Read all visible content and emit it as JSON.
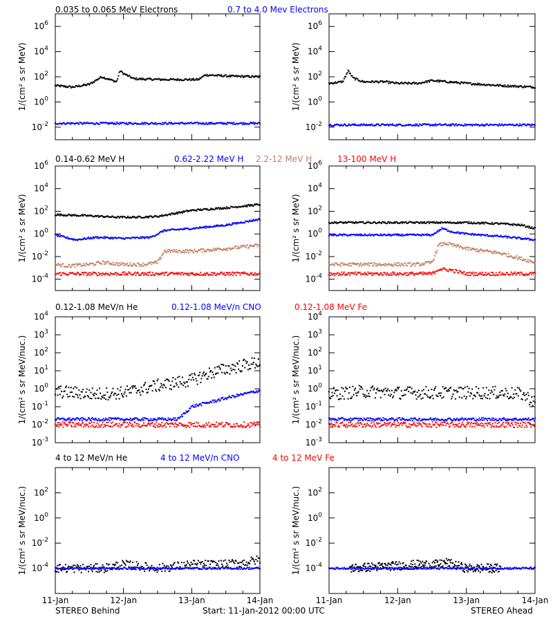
{
  "colors": {
    "black": "#000000",
    "blue": "#0000ff",
    "tan": "#c08060",
    "red": "#ff0000",
    "grey": "#808080"
  },
  "footer": {
    "left": "STEREO Behind",
    "center": "Start: 11-Jan-2012 00:00 UTC",
    "right": "STEREO Ahead"
  },
  "chart_data": [
    {
      "type": "scatter",
      "panel": "electrons",
      "legend": [
        {
          "text": "0.035 to 0.065 MeV Electrons",
          "color": "#000000"
        },
        {
          "text": "0.7 to 4.0 Mev Electrons",
          "color": "#0000ff"
        }
      ],
      "ylabel": "1/(cm² s sr MeV)",
      "yscale": "log",
      "ylim": [
        0.001,
        10000000
      ],
      "yticks": [
        {
          "value": 0.01,
          "base": "10",
          "exp": "-2"
        },
        {
          "value": 1,
          "base": "10",
          "exp": "0"
        },
        {
          "value": 100,
          "base": "10",
          "exp": "2"
        },
        {
          "value": 10000,
          "base": "10",
          "exp": "4"
        },
        {
          "value": 1000000,
          "base": "10",
          "exp": "6"
        }
      ],
      "xlim": [
        0,
        3
      ],
      "xticks": [
        "11-Jan",
        "12-Jan",
        "13-Jan",
        "14-Jan"
      ],
      "behind": [
        {
          "name": "0.035 to 0.065 MeV Electrons",
          "color": "#000000",
          "x": [
            0,
            0.25,
            0.5,
            0.68,
            0.8,
            0.9,
            0.95,
            1.0,
            1.15,
            1.3,
            1.6,
            1.9,
            2.1,
            2.2,
            2.6,
            3.0
          ],
          "y": [
            20,
            15,
            25,
            100,
            60,
            40,
            300,
            180,
            70,
            65,
            60,
            60,
            60,
            140,
            110,
            100
          ]
        },
        {
          "name": "0.7 to 4.0 Mev Electrons",
          "color": "#0000ff",
          "x": [
            0,
            0.5,
            1.0,
            1.5,
            2.0,
            2.5,
            3.0
          ],
          "y": [
            0.02,
            0.02,
            0.02,
            0.02,
            0.02,
            0.02,
            0.02
          ]
        }
      ],
      "ahead": [
        {
          "name": "0.035 to 0.065 MeV Electrons",
          "color": "#000000",
          "x": [
            0,
            0.2,
            0.28,
            0.35,
            0.5,
            0.8,
            1.0,
            1.3,
            1.5,
            2.0,
            2.5,
            3.0
          ],
          "y": [
            30,
            40,
            300,
            80,
            40,
            40,
            30,
            30,
            50,
            30,
            20,
            15
          ]
        },
        {
          "name": "0.7 to 4.0 Mev Electrons",
          "color": "#0000ff",
          "x": [
            0,
            0.5,
            1.0,
            1.5,
            2.0,
            2.5,
            3.0
          ],
          "y": [
            0.015,
            0.015,
            0.015,
            0.015,
            0.015,
            0.015,
            0.015
          ]
        }
      ]
    },
    {
      "type": "scatter",
      "panel": "protons",
      "legend": [
        {
          "text": "0.14-0.62 MeV H",
          "color": "#000000"
        },
        {
          "text": "0.62-2.22 MeV H",
          "color": "#0000ff"
        },
        {
          "text": "2.2-12 MeV H",
          "color": "#c08060"
        },
        {
          "text": "13-100 MeV H",
          "color": "#ff0000"
        }
      ],
      "ylabel": "1/(cm² s sr MeV)",
      "yscale": "log",
      "ylim": [
        1e-05,
        1000000
      ],
      "yticks": [
        {
          "value": 0.0001,
          "base": "10",
          "exp": "-4"
        },
        {
          "value": 0.01,
          "base": "10",
          "exp": "-2"
        },
        {
          "value": 1,
          "base": "10",
          "exp": "0"
        },
        {
          "value": 100,
          "base": "10",
          "exp": "2"
        },
        {
          "value": 10000,
          "base": "10",
          "exp": "4"
        },
        {
          "value": 1000000,
          "base": "10",
          "exp": "6"
        }
      ],
      "xlim": [
        0,
        3
      ],
      "xticks": [
        "11-Jan",
        "12-Jan",
        "13-Jan",
        "14-Jan"
      ],
      "behind": [
        {
          "name": "0.14-0.62 MeV H",
          "color": "#000000",
          "x": [
            0,
            0.5,
            0.9,
            1.2,
            1.5,
            2.0,
            2.5,
            3.0
          ],
          "y": [
            50,
            40,
            30,
            30,
            35,
            120,
            200,
            400
          ]
        },
        {
          "name": "0.62-2.22 MeV H",
          "color": "#0000ff",
          "x": [
            0,
            0.3,
            0.6,
            1.0,
            1.4,
            1.6,
            2.0,
            2.5,
            3.0
          ],
          "y": [
            0.8,
            0.3,
            0.5,
            0.4,
            0.5,
            2,
            3,
            6,
            20
          ]
        },
        {
          "name": "2.2-12 MeV H",
          "color": "#c08060",
          "x": [
            0,
            0.2,
            0.5,
            0.7,
            1.0,
            1.3,
            1.5,
            1.6,
            2.0,
            2.5,
            3.0
          ],
          "y": [
            0.002,
            0.0015,
            0.002,
            0.003,
            0.002,
            0.002,
            0.003,
            0.03,
            0.03,
            0.05,
            0.1
          ]
        },
        {
          "name": "13-100 MeV H",
          "color": "#ff0000",
          "x": [
            0,
            0.5,
            1.0,
            1.5,
            2.0,
            2.5,
            3.0
          ],
          "y": [
            0.0003,
            0.0003,
            0.0003,
            0.0003,
            0.0003,
            0.0003,
            0.0003
          ]
        }
      ],
      "ahead": [
        {
          "name": "0.14-0.62 MeV H",
          "color": "#000000",
          "x": [
            0,
            0.5,
            1.0,
            1.5,
            2.0,
            2.5,
            2.8,
            3.0
          ],
          "y": [
            10,
            10,
            10,
            10,
            10,
            8,
            6,
            3
          ]
        },
        {
          "name": "0.62-2.22 MeV H",
          "color": "#0000ff",
          "x": [
            0,
            0.5,
            1.0,
            1.5,
            1.65,
            1.8,
            2.0,
            2.5,
            3.0
          ],
          "y": [
            0.8,
            0.8,
            0.8,
            0.8,
            3,
            1.5,
            1,
            0.6,
            0.3
          ]
        },
        {
          "name": "2.2-12 MeV H",
          "color": "#c08060",
          "x": [
            0,
            0.5,
            1.0,
            1.3,
            1.5,
            1.6,
            1.7,
            2.0,
            2.5,
            3.0
          ],
          "y": [
            0.002,
            0.002,
            0.002,
            0.002,
            0.003,
            0.1,
            0.15,
            0.05,
            0.02,
            0.003
          ]
        },
        {
          "name": "13-100 MeV H",
          "color": "#ff0000",
          "x": [
            0,
            0.5,
            1.0,
            1.5,
            1.6,
            1.8,
            2.0,
            2.5,
            3.0
          ],
          "y": [
            0.0003,
            0.0003,
            0.0003,
            0.0003,
            0.0008,
            0.0006,
            0.0003,
            0.0003,
            0.0003
          ]
        }
      ]
    },
    {
      "type": "scatter",
      "panel": "heavy-ions-low",
      "legend": [
        {
          "text": "0.12-1.08 MeV/n He",
          "color": "#000000"
        },
        {
          "text": "0.12-1.08 MeV/n CNO",
          "color": "#0000ff"
        },
        {
          "text": "0.12-1.08 MeV Fe",
          "color": "#ff0000"
        }
      ],
      "ylabel": "1/(cm² s sr MeV/nuc.)",
      "yscale": "log",
      "ylim": [
        0.001,
        10000
      ],
      "yticks": [
        {
          "value": 0.001,
          "base": "10",
          "exp": "-3"
        },
        {
          "value": 0.01,
          "base": "10",
          "exp": "-2"
        },
        {
          "value": 0.1,
          "base": "10",
          "exp": "-1"
        },
        {
          "value": 1,
          "base": "10",
          "exp": "0"
        },
        {
          "value": 10,
          "base": "10",
          "exp": "1"
        },
        {
          "value": 100,
          "base": "10",
          "exp": "2"
        },
        {
          "value": 1000,
          "base": "10",
          "exp": "3"
        },
        {
          "value": 10000,
          "base": "10",
          "exp": "4"
        }
      ],
      "xlim": [
        0,
        3
      ],
      "xticks": [
        "11-Jan",
        "12-Jan",
        "13-Jan",
        "14-Jan"
      ],
      "behind": [
        {
          "name": "0.12-1.08 MeV/n He",
          "color": "#000000",
          "x": [
            0,
            0.3,
            0.6,
            1.0,
            1.5,
            2.0,
            2.3,
            2.6,
            3.0
          ],
          "y": [
            0.7,
            0.6,
            0.5,
            0.6,
            1.5,
            3,
            8,
            15,
            30
          ]
        },
        {
          "name": "0.12-1.08 MeV/n CNO",
          "color": "#0000ff",
          "x": [
            0,
            0.5,
            1.0,
            1.5,
            1.8,
            2.0,
            2.5,
            3.0
          ],
          "y": [
            0.02,
            0.02,
            0.02,
            0.02,
            0.02,
            0.1,
            0.3,
            0.8
          ]
        },
        {
          "name": "0.12-1.08 MeV Fe",
          "color": "#ff0000",
          "x": [
            0,
            0.5,
            1.0,
            1.5,
            2.0,
            2.5,
            3.0
          ],
          "y": [
            0.01,
            0.01,
            0.01,
            0.01,
            0.01,
            0.01,
            0.01
          ]
        }
      ],
      "ahead": [
        {
          "name": "0.12-1.08 MeV/n He",
          "color": "#000000",
          "x": [
            0,
            0.5,
            1.0,
            1.5,
            2.0,
            2.5,
            2.8,
            3.0
          ],
          "y": [
            0.5,
            0.7,
            0.6,
            0.6,
            0.6,
            0.6,
            0.5,
            0.2
          ]
        },
        {
          "name": "0.12-1.08 MeV/n CNO",
          "color": "#0000ff",
          "x": [
            0,
            0.5,
            1.0,
            1.5,
            2.0,
            2.5,
            3.0
          ],
          "y": [
            0.02,
            0.02,
            0.02,
            0.02,
            0.02,
            0.02,
            0.02
          ]
        },
        {
          "name": "0.12-1.08 MeV Fe",
          "color": "#ff0000",
          "x": [
            0,
            0.5,
            1.0,
            1.5,
            2.0,
            2.5,
            3.0
          ],
          "y": [
            0.01,
            0.01,
            0.01,
            0.01,
            0.01,
            0.01,
            0.01
          ]
        }
      ]
    },
    {
      "type": "scatter",
      "panel": "heavy-ions-high",
      "legend": [
        {
          "text": "4 to 12 MeV/n He",
          "color": "#000000"
        },
        {
          "text": "4 to 12 MeV/n CNO",
          "color": "#0000ff"
        },
        {
          "text": "4 to 12 MeV Fe",
          "color": "#ff0000"
        }
      ],
      "ylabel": "1/(cm² s sr MeV/nuc.)",
      "yscale": "log",
      "ylim": [
        1e-06,
        10000
      ],
      "yticks": [
        {
          "value": 0.0001,
          "base": "10",
          "exp": "-4"
        },
        {
          "value": 0.01,
          "base": "10",
          "exp": "-2"
        },
        {
          "value": 1,
          "base": "10",
          "exp": "0"
        },
        {
          "value": 100,
          "base": "10",
          "exp": "2"
        }
      ],
      "xlim": [
        0,
        3
      ],
      "xticks": [
        "11-Jan",
        "12-Jan",
        "13-Jan",
        "14-Jan"
      ],
      "behind": [
        {
          "name": "4 to 12 MeV/n He",
          "color": "#000000",
          "x": [
            0,
            0.7,
            1.0,
            1.5,
            2.0,
            2.5,
            2.8,
            3.0
          ],
          "y": [
            0.0001,
            0.0001,
            0.0002,
            0.0001,
            0.0002,
            0.0002,
            0.0003,
            0.0005
          ]
        },
        {
          "name": "4 to 12 MeV/n CNO",
          "color": "#0000ff",
          "x": [
            0,
            0.5,
            1.0,
            1.5,
            2.0,
            2.5,
            3.0
          ],
          "y": [
            0.0001,
            0.0001,
            0.0001,
            0.0001,
            0.0001,
            0.0001,
            0.0001
          ]
        }
      ],
      "ahead": [
        {
          "name": "4 to 12 MeV/n He",
          "color": "#000000",
          "x": [
            0.3,
            1.3,
            1.6,
            1.7,
            1.8,
            2.0,
            2.5
          ],
          "y": [
            0.0001,
            0.0002,
            0.0002,
            0.0003,
            0.0002,
            0.0001,
            0.0001
          ]
        },
        {
          "name": "4 to 12 MeV/n CNO",
          "color": "#0000ff",
          "x": [
            0,
            0.5,
            1.0,
            1.5,
            2.0,
            2.5,
            3.0
          ],
          "y": [
            0.0001,
            0.0001,
            0.0001,
            0.0001,
            0.0001,
            0.0001,
            0.0001
          ]
        }
      ]
    }
  ]
}
